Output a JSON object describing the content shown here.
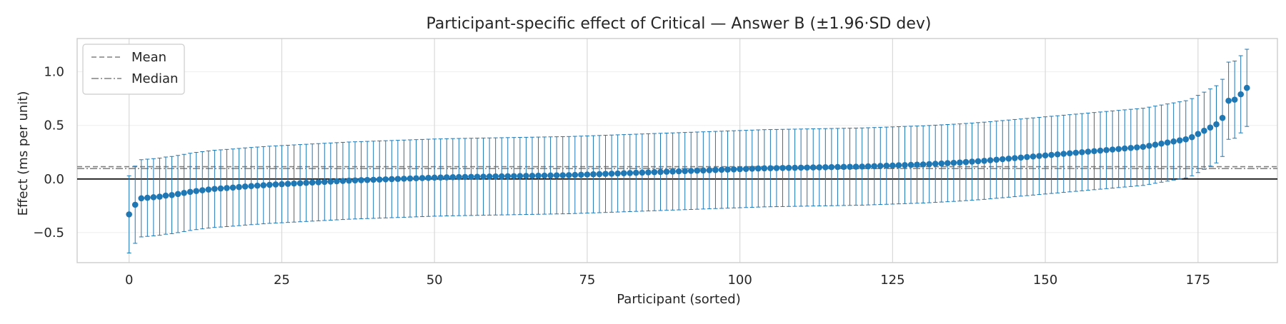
{
  "chart_data": {
    "type": "scatter",
    "title": "Participant-specific effect of Critical — Answer B (±1.96·SD dev)",
    "xlabel": "Participant (sorted)",
    "ylabel": "Effect (ms per unit)",
    "xlim": [
      -8.5,
      188
    ],
    "ylim": [
      -0.78,
      1.31
    ],
    "xticks": [
      0,
      25,
      50,
      75,
      100,
      125,
      150,
      175
    ],
    "yticks": [
      -0.5,
      0.0,
      0.5,
      1.0
    ],
    "ytick_labels": [
      "−0.5",
      "0.0",
      "0.5",
      "1.0"
    ],
    "error_halfwidth": 0.36,
    "grid": true,
    "legend_position": "top-left",
    "legend": [
      {
        "label": "Mean",
        "style": "dashed"
      },
      {
        "label": "Median",
        "style": "dashdot"
      }
    ],
    "reference_lines": {
      "zero": 0.0,
      "mean": 0.115,
      "median": 0.097
    },
    "colors": {
      "points": "#1f77b4",
      "zero_line": "#000000",
      "mean_line": "#808080",
      "median_line": "#808080",
      "grid": "#d9d9d9",
      "frame": "#cccccc"
    },
    "series": [
      {
        "x_start": 0,
        "y": [
          -0.33,
          -0.24,
          -0.18,
          -0.175,
          -0.17,
          -0.165,
          -0.155,
          -0.15,
          -0.14,
          -0.13,
          -0.12,
          -0.112,
          -0.105,
          -0.098,
          -0.092,
          -0.088,
          -0.084,
          -0.08,
          -0.075,
          -0.07,
          -0.066,
          -0.062,
          -0.058,
          -0.054,
          -0.051,
          -0.048,
          -0.045,
          -0.042,
          -0.039,
          -0.036,
          -0.033,
          -0.03,
          -0.027,
          -0.024,
          -0.021,
          -0.018,
          -0.015,
          -0.013,
          -0.011,
          -0.009,
          -0.007,
          -0.005,
          -0.003,
          -0.001,
          0.001,
          0.003,
          0.005,
          0.007,
          0.009,
          0.011,
          0.013,
          0.014,
          0.016,
          0.017,
          0.018,
          0.019,
          0.02,
          0.021,
          0.022,
          0.023,
          0.024,
          0.025,
          0.026,
          0.027,
          0.028,
          0.029,
          0.03,
          0.031,
          0.032,
          0.033,
          0.034,
          0.035,
          0.036,
          0.038,
          0.04,
          0.042,
          0.044,
          0.046,
          0.048,
          0.05,
          0.052,
          0.054,
          0.056,
          0.058,
          0.06,
          0.062,
          0.064,
          0.066,
          0.068,
          0.07,
          0.072,
          0.074,
          0.076,
          0.078,
          0.08,
          0.082,
          0.084,
          0.086,
          0.088,
          0.09,
          0.092,
          0.094,
          0.096,
          0.098,
          0.1,
          0.101,
          0.102,
          0.103,
          0.104,
          0.105,
          0.106,
          0.107,
          0.108,
          0.109,
          0.11,
          0.111,
          0.112,
          0.113,
          0.114,
          0.115,
          0.116,
          0.118,
          0.12,
          0.122,
          0.124,
          0.126,
          0.128,
          0.13,
          0.132,
          0.134,
          0.136,
          0.139,
          0.142,
          0.145,
          0.148,
          0.151,
          0.154,
          0.158,
          0.162,
          0.166,
          0.17,
          0.175,
          0.18,
          0.185,
          0.19,
          0.195,
          0.2,
          0.205,
          0.21,
          0.215,
          0.22,
          0.225,
          0.23,
          0.235,
          0.24,
          0.245,
          0.25,
          0.255,
          0.26,
          0.265,
          0.27,
          0.275,
          0.28,
          0.285,
          0.29,
          0.295,
          0.3,
          0.31,
          0.32,
          0.33,
          0.34,
          0.35,
          0.36,
          0.37,
          0.39,
          0.42,
          0.45,
          0.48,
          0.51,
          0.57,
          0.73,
          0.74,
          0.79,
          0.85
        ]
      }
    ]
  }
}
